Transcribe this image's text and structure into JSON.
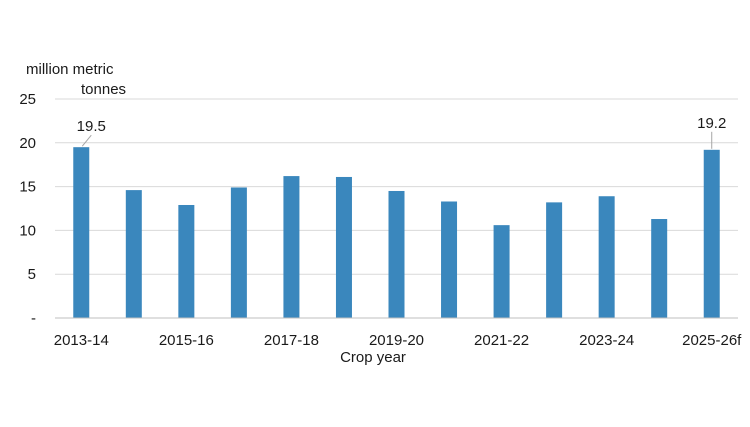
{
  "chart_data": {
    "type": "bar",
    "title": "",
    "ylabel": "million metric tonnes",
    "ylabel_lines": [
      "million metric",
      "tonnes"
    ],
    "xlabel": "Crop year",
    "ylim": [
      0,
      25
    ],
    "yticks": [
      0,
      5,
      10,
      15,
      20,
      25
    ],
    "ytick_labels": [
      "-",
      "5",
      "10",
      "15",
      "20",
      "25"
    ],
    "categories": [
      "2013-14",
      "2014-15",
      "2015-16",
      "2016-17",
      "2017-18",
      "2018-19",
      "2019-20",
      "2020-21",
      "2021-22",
      "2022-23",
      "2023-24",
      "2024-25",
      "2025-26f"
    ],
    "xtick_labels": [
      "2013-14",
      "",
      "2015-16",
      "",
      "2017-18",
      "",
      "2019-20",
      "",
      "2021-22",
      "",
      "2023-24",
      "",
      "2025-26f"
    ],
    "values": [
      19.5,
      14.6,
      12.9,
      14.9,
      16.2,
      16.1,
      14.5,
      13.3,
      10.6,
      13.2,
      13.9,
      11.3,
      19.2
    ],
    "annotations": [
      {
        "index": 0,
        "label": "19.5"
      },
      {
        "index": 12,
        "label": "19.2"
      }
    ],
    "grid": "horizontal",
    "legend": "none",
    "bar_color": "#3a87bd"
  }
}
